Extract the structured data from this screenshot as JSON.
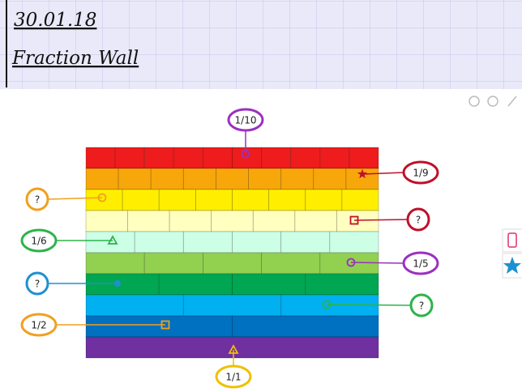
{
  "header": {
    "date": "30.01.18",
    "title": "Fraction Wall"
  },
  "callouts": [
    {
      "label": "1/10"
    },
    {
      "label": "1/9"
    },
    {
      "label": "?"
    },
    {
      "label": "?"
    },
    {
      "label": "1/6"
    },
    {
      "label": "1/5"
    },
    {
      "label": "?"
    },
    {
      "label": "?"
    },
    {
      "label": "1/2"
    },
    {
      "label": "1/1"
    }
  ]
}
